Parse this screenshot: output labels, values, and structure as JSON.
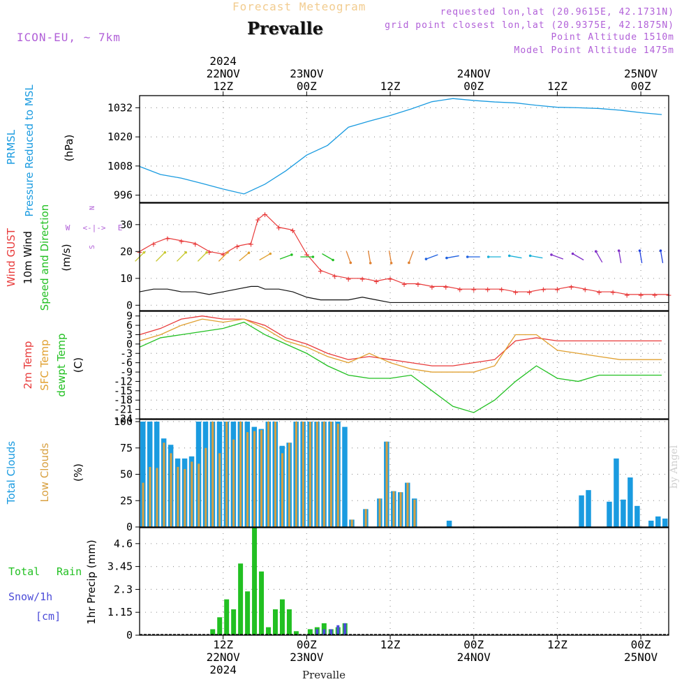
{
  "header": {
    "super_title": "Forecast Meteogram",
    "location": "Prevalle",
    "model": "ICON-EU, ~ 7km",
    "requested": "requested lon,lat (20.9615E, 42.1731N)",
    "grid_point": "grid point closest lon,lat (20.9375E, 42.1875N)",
    "point_altitude": "Point Altitude 1510m",
    "model_altitude": "Model Point Altitude 1475m",
    "credit": "by Angel",
    "footer_location": "Prevalle"
  },
  "colors": {
    "pressure": "#1a9be0",
    "gust": "#e83a3a",
    "wind": "#111111",
    "temp2m": "#e83a3a",
    "sfc": "#e0a030",
    "dewpt": "#22c022",
    "total_cloud": "#1a9be0",
    "low_cloud": "#d8a040",
    "rain": "#22c022",
    "snow": "#4b4bd8",
    "dir_label": "#b160d8"
  },
  "chart_data": [
    {
      "type": "line",
      "panel": "pressure",
      "labels": [
        "PRMSL",
        "Pressure Reduced to MSL"
      ],
      "ylabel": "(hPa)",
      "yticks": [
        996,
        1008,
        1020,
        1032
      ],
      "ylim": [
        993,
        1037
      ],
      "grid": true,
      "x": [
        0,
        3,
        6,
        9,
        12,
        15,
        18,
        21,
        24,
        27,
        30,
        33,
        36,
        39,
        42,
        45,
        48,
        51,
        54,
        57,
        60,
        63,
        66,
        69,
        72,
        75
      ],
      "values": [
        1007.8,
        1004.5,
        1003.0,
        1000.8,
        998.5,
        996.5,
        1000.5,
        1006.0,
        1012.5,
        1016.5,
        1024.0,
        1026.5,
        1028.8,
        1031.5,
        1034.5,
        1035.8,
        1035.0,
        1034.4,
        1034.0,
        1033.0,
        1032.2,
        1032.0,
        1031.7,
        1031.0,
        1030.0,
        1029.2
      ]
    },
    {
      "type": "line",
      "panel": "wind",
      "labels": [
        "Wind GUST",
        "10m Wind",
        "Speed and Direction"
      ],
      "ylabel": "(m/s)",
      "compass": {
        "n": "N",
        "s": "S",
        "e": "E",
        "w": "W",
        "arrow": "<-|->"
      },
      "yticks": [
        0,
        10,
        20,
        30
      ],
      "ylim": [
        -2,
        38
      ],
      "grid": true,
      "x": [
        0,
        2,
        4,
        6,
        8,
        10,
        12,
        14,
        16,
        17,
        18,
        20,
        22,
        24,
        26,
        28,
        30,
        32,
        34,
        36,
        38,
        40,
        42,
        44,
        46,
        48,
        50,
        52,
        54,
        56,
        58,
        60,
        62,
        64,
        66,
        68,
        70,
        72,
        74,
        76
      ],
      "series": [
        {
          "name": "Wind GUST",
          "values": [
            20,
            23,
            25,
            24,
            23,
            20,
            19,
            22,
            23,
            32,
            34,
            29,
            28,
            19,
            13,
            11,
            10,
            10,
            9,
            10,
            8,
            8,
            7,
            7,
            6,
            6,
            6,
            6,
            5,
            5,
            6,
            6,
            7,
            6,
            5,
            5,
            4,
            4,
            4,
            4
          ]
        },
        {
          "name": "10m Wind",
          "values": [
            5,
            6,
            6,
            5,
            5,
            4,
            5,
            6,
            7,
            7,
            6,
            6,
            5,
            3,
            2,
            2,
            2,
            3,
            2,
            1,
            1,
            1,
            1,
            1,
            1,
            1,
            1,
            1,
            1,
            1,
            1,
            1,
            1,
            1,
            1,
            1,
            1,
            1,
            1,
            1
          ]
        }
      ],
      "direction_arrows": {
        "x": [
          0,
          3,
          6,
          9,
          12,
          15,
          18,
          21,
          24,
          27,
          30,
          33,
          36,
          39,
          42,
          45,
          48,
          51,
          54,
          57,
          60,
          63,
          66,
          69,
          72,
          75
        ],
        "deg_to": [
          45,
          45,
          45,
          45,
          45,
          50,
          60,
          70,
          90,
          120,
          160,
          170,
          170,
          200,
          250,
          260,
          270,
          270,
          280,
          280,
          290,
          300,
          330,
          350,
          350,
          350
        ],
        "level": 18
      }
    },
    {
      "type": "line",
      "panel": "temperature",
      "labels": [
        "2m Temp",
        "SFC Temp",
        "dewpt Temp"
      ],
      "ylabel": "(C)",
      "yticks": [
        9,
        6,
        3,
        0,
        -3,
        -6,
        -9,
        -12,
        -15,
        -18,
        -21,
        -24
      ],
      "ylim": [
        -24,
        10.5
      ],
      "grid": true,
      "x": [
        0,
        3,
        6,
        9,
        12,
        15,
        18,
        21,
        24,
        27,
        30,
        33,
        36,
        39,
        42,
        45,
        48,
        51,
        54,
        57,
        60,
        63,
        66,
        69,
        72,
        75
      ],
      "series": [
        {
          "name": "2m Temp",
          "values": [
            3,
            5,
            8,
            9,
            8,
            8,
            6,
            2,
            0,
            -3,
            -5,
            -4,
            -5,
            -6,
            -7,
            -7,
            -6,
            -5,
            1,
            2,
            1,
            1,
            1,
            1,
            1,
            1
          ]
        },
        {
          "name": "SFC Temp",
          "values": [
            1,
            3,
            6,
            8,
            7,
            8,
            5,
            1,
            -1,
            -4,
            -6,
            -3,
            -6,
            -8,
            -9,
            -9,
            -9,
            -7,
            3,
            3,
            -2,
            -3,
            -4,
            -5,
            -5,
            -5
          ]
        },
        {
          "name": "dewpt Temp",
          "values": [
            -1,
            2,
            3,
            4,
            5,
            7,
            3,
            0,
            -3,
            -7,
            -10,
            -11,
            -11,
            -10,
            -15,
            -20,
            -22,
            -18,
            -12,
            -7,
            -11,
            -12,
            -10,
            -10,
            -10,
            -10
          ]
        }
      ]
    },
    {
      "type": "bar",
      "panel": "clouds",
      "labels": [
        "Total Clouds",
        "Low Clouds"
      ],
      "ylabel": "(%)",
      "yticks": [
        0,
        25,
        50,
        75,
        100
      ],
      "ylim": [
        0,
        102
      ],
      "grid": true,
      "x": [
        0,
        1,
        2,
        3,
        4,
        5,
        6,
        7,
        8,
        9,
        10,
        11,
        12,
        13,
        14,
        15,
        16,
        17,
        18,
        19,
        20,
        21,
        22,
        23,
        24,
        25,
        26,
        27,
        28,
        29,
        30,
        31,
        32,
        33,
        34,
        35,
        36,
        37,
        38,
        39,
        40,
        41,
        42,
        43,
        44,
        45,
        46,
        47,
        48,
        49,
        50,
        51,
        52,
        53,
        54,
        55,
        56,
        57,
        58,
        59,
        60,
        61,
        62,
        63,
        64,
        65,
        66,
        67,
        68,
        69,
        70,
        71,
        72,
        73,
        74,
        75
      ],
      "series": [
        {
          "name": "Total Clouds",
          "values": [
            100,
            100,
            100,
            84,
            78,
            65,
            65,
            67,
            100,
            100,
            100,
            100,
            100,
            100,
            100,
            100,
            95,
            93,
            100,
            100,
            77,
            80,
            100,
            100,
            100,
            100,
            100,
            100,
            100,
            95,
            7,
            0,
            17,
            0,
            27,
            81,
            34,
            33,
            42,
            27,
            0,
            0,
            0,
            0,
            6,
            0,
            0,
            0,
            0,
            0,
            0,
            0,
            0,
            0,
            0,
            0,
            0,
            0,
            0,
            0,
            0,
            0,
            0,
            30,
            35,
            0,
            0,
            24,
            65,
            26,
            47,
            20,
            0,
            6,
            10,
            8
          ]
        },
        {
          "name": "Low Clouds",
          "values": [
            42,
            57,
            56,
            80,
            70,
            57,
            55,
            62,
            60,
            75,
            100,
            70,
            100,
            83,
            100,
            90,
            91,
            92,
            100,
            100,
            70,
            80,
            100,
            100,
            100,
            100,
            100,
            100,
            98,
            0,
            7,
            0,
            17,
            0,
            27,
            81,
            34,
            33,
            42,
            26,
            0,
            0,
            0,
            0,
            0,
            0,
            0,
            0,
            0,
            0,
            0,
            0,
            0,
            0,
            0,
            0,
            0,
            0,
            0,
            0,
            0,
            0,
            0,
            0,
            0,
            0,
            0,
            0,
            0,
            0,
            0,
            0,
            0,
            0,
            0,
            0
          ]
        }
      ]
    },
    {
      "type": "bar",
      "panel": "precip",
      "labels": [
        "Total",
        "Rain",
        "Snow/1h",
        "[cm]"
      ],
      "ylabel": "1hr Precip (mm)",
      "yticks": [
        "0",
        "1.15",
        "2.3",
        "3.45",
        "4.6"
      ],
      "ylim": [
        0,
        5.4
      ],
      "grid": true,
      "x": [
        10,
        11,
        12,
        13,
        14,
        15,
        16,
        17,
        18,
        19,
        20,
        21,
        22,
        23,
        24,
        25,
        26,
        27,
        28,
        29
      ],
      "series": [
        {
          "name": "Rain",
          "values": [
            0.3,
            0.9,
            1.8,
            1.3,
            3.6,
            2.2,
            5.4,
            3.2,
            0.4,
            1.3,
            1.8,
            1.3,
            0.2,
            0.0,
            0.3,
            0.4,
            0.6,
            0.3,
            0.4,
            0.6
          ]
        },
        {
          "name": "Snow/1h",
          "values": [
            0,
            0,
            0,
            0,
            0,
            0,
            0,
            0,
            0,
            0,
            0,
            0,
            0,
            0,
            0,
            0.3,
            0.3,
            0.3,
            0.5,
            0.6
          ]
        }
      ]
    }
  ],
  "time_axis": {
    "top_labels": [
      {
        "x": 12,
        "lines": [
          "2024",
          "22NOV",
          "12Z"
        ]
      },
      {
        "x": 24,
        "lines": [
          "",
          "23NOV",
          "00Z"
        ]
      },
      {
        "x": 36,
        "lines": [
          "",
          "",
          "12Z"
        ]
      },
      {
        "x": 48,
        "lines": [
          "",
          "24NOV",
          "00Z"
        ]
      },
      {
        "x": 60,
        "lines": [
          "",
          "",
          "12Z"
        ]
      },
      {
        "x": 72,
        "lines": [
          "",
          "25NOV",
          "00Z"
        ]
      }
    ],
    "bottom_labels": [
      {
        "x": 12,
        "lines": [
          "12Z",
          "22NOV",
          "2024"
        ]
      },
      {
        "x": 24,
        "lines": [
          "00Z",
          "23NOV",
          ""
        ]
      },
      {
        "x": 36,
        "lines": [
          "12Z",
          "",
          ""
        ]
      },
      {
        "x": 48,
        "lines": [
          "00Z",
          "24NOV",
          ""
        ]
      },
      {
        "x": 60,
        "lines": [
          "12Z",
          "",
          ""
        ]
      },
      {
        "x": 72,
        "lines": [
          "00Z",
          "25NOV",
          ""
        ]
      }
    ],
    "range": [
      0,
      76
    ]
  }
}
